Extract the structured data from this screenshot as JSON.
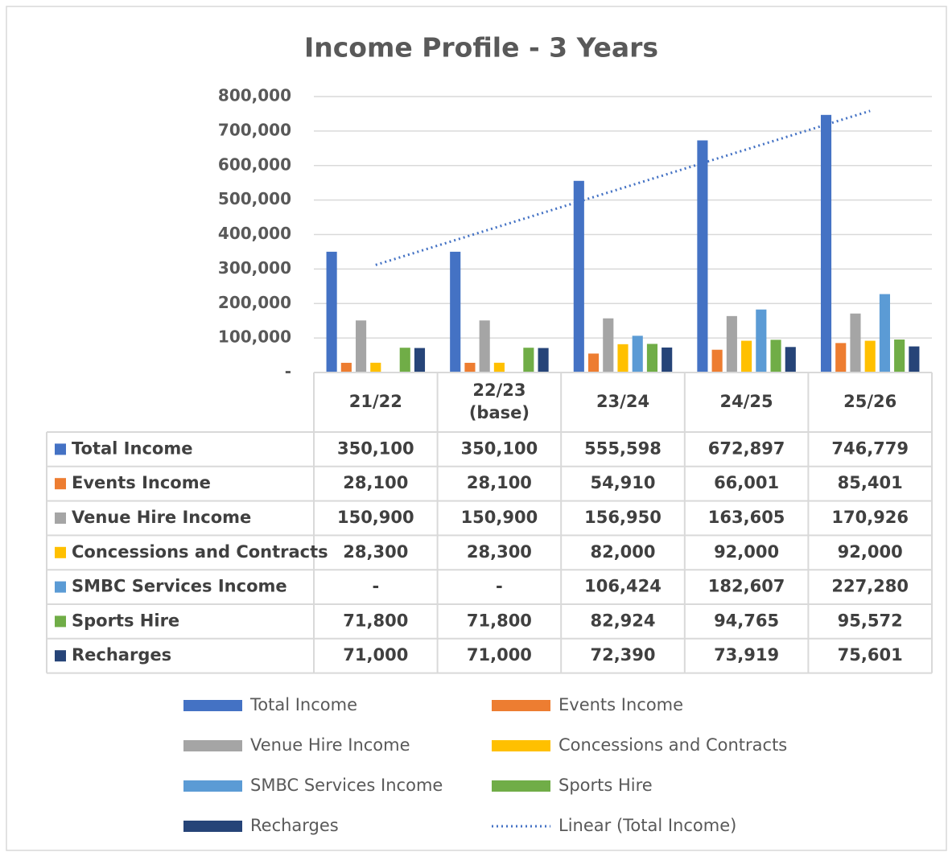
{
  "chart_data": {
    "type": "bar",
    "title": "Income Profile - 3 Years",
    "categories": [
      "21/22",
      "22/23 (base)",
      "23/24",
      "24/25",
      "25/26"
    ],
    "ylim": [
      0,
      800000
    ],
    "yticks": [
      {
        "value": 0,
        "label": "-"
      },
      {
        "value": 100000,
        "label": "100,000"
      },
      {
        "value": 200000,
        "label": "200,000"
      },
      {
        "value": 300000,
        "label": "300,000"
      },
      {
        "value": 400000,
        "label": "400,000"
      },
      {
        "value": 500000,
        "label": "500,000"
      },
      {
        "value": 600000,
        "label": "600,000"
      },
      {
        "value": 700000,
        "label": "700,000"
      },
      {
        "value": 800000,
        "label": "800,000"
      }
    ],
    "grid": true,
    "data_table": true,
    "legend": "bottom",
    "series": [
      {
        "name": "Total Income",
        "color": "#4472c4",
        "values": [
          350100,
          350100,
          555598,
          672897,
          746779
        ],
        "value_labels": [
          "350,100",
          "350,100",
          "555,598",
          "672,897",
          "746,779"
        ]
      },
      {
        "name": "Events Income",
        "color": "#ed7d31",
        "values": [
          28100,
          28100,
          54910,
          66001,
          85401
        ],
        "value_labels": [
          "28,100",
          "28,100",
          "54,910",
          "66,001",
          "85,401"
        ]
      },
      {
        "name": "Venue Hire Income",
        "color": "#a5a5a5",
        "values": [
          150900,
          150900,
          156950,
          163605,
          170926
        ],
        "value_labels": [
          "150,900",
          "150,900",
          "156,950",
          "163,605",
          "170,926"
        ]
      },
      {
        "name": "Concessions and Contracts",
        "color": "#ffc000",
        "values": [
          28300,
          28300,
          82000,
          92000,
          92000
        ],
        "value_labels": [
          "28,300",
          "28,300",
          "82,000",
          "92,000",
          "92,000"
        ]
      },
      {
        "name": "SMBC Services Income",
        "color": "#5b9bd5",
        "values": [
          null,
          null,
          106424,
          182607,
          227280
        ],
        "value_labels": [
          "-",
          "-",
          "106,424",
          "182,607",
          "227,280"
        ]
      },
      {
        "name": "Sports Hire",
        "color": "#70ad47",
        "values": [
          71800,
          71800,
          82924,
          94765,
          95572
        ],
        "value_labels": [
          "71,800",
          "71,800",
          "82,924",
          "94,765",
          "95,572"
        ]
      },
      {
        "name": "Recharges",
        "color": "#264478",
        "values": [
          71000,
          71000,
          72390,
          73919,
          75601
        ],
        "value_labels": [
          "71,000",
          "71,000",
          "72,390",
          "73,919",
          "75,601"
        ]
      }
    ],
    "trendline": {
      "name": "Linear (Total Income)",
      "series": 0,
      "color": "#4472c4",
      "style": "dotted"
    }
  }
}
